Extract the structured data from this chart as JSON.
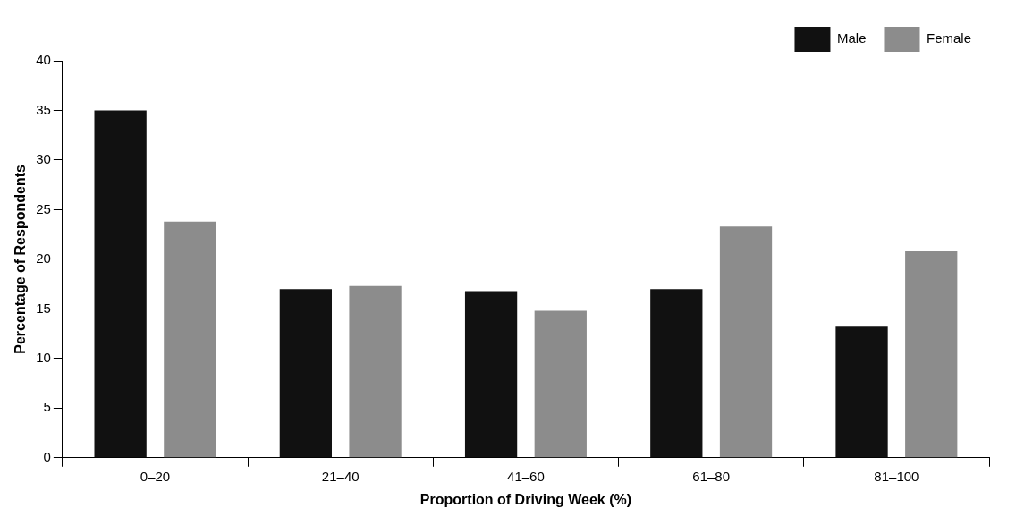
{
  "chart_data": {
    "type": "bar",
    "xlabel": "Proportion of Driving Week (%)",
    "ylabel": "Percentage of Respondents",
    "categories": [
      "0–20",
      "21–40",
      "41–60",
      "61–80",
      "81–100"
    ],
    "series": [
      {
        "name": "Male",
        "color": "#111111",
        "values": [
          35,
          17,
          16.8,
          17,
          13.2
        ]
      },
      {
        "name": "Female",
        "color": "#8c8c8c",
        "values": [
          23.8,
          17.3,
          14.8,
          23.3,
          20.8
        ]
      }
    ],
    "ylim": [
      0,
      40
    ],
    "yticks": [
      0,
      5,
      10,
      15,
      20,
      25,
      30,
      35,
      40
    ],
    "grid": false,
    "legend": "top right"
  }
}
